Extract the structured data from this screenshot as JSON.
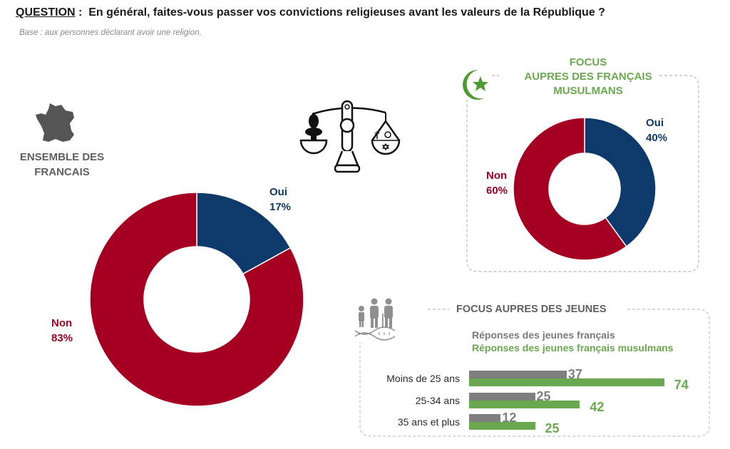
{
  "header": {
    "question_label": "QUESTION",
    "question_sep": " :  ",
    "question_text": "En général, faites-vous passer vos convictions religieuses avant les valeurs de la République ?",
    "base": "Base : aux personnes déclarant avoir une religion."
  },
  "icons": {
    "france_map": "france-map-icon",
    "scale": "balance-scale-icon",
    "crescent": "crescent-star-icon",
    "family": "family-dna-icon"
  },
  "colors": {
    "non": "#a50021",
    "oui": "#0e3a6b",
    "gray": "#7f7f7f",
    "green": "#6aa84f"
  },
  "chart_data": [
    {
      "type": "pie",
      "title": "ENSEMBLE DES FRANCAIS",
      "title_lines": [
        "ENSEMBLE DES",
        "FRANCAIS"
      ],
      "donut": true,
      "slices": [
        {
          "label": "Oui",
          "value": 17,
          "value_label": "17%",
          "color": "#0e3a6b"
        },
        {
          "label": "Non",
          "value": 83,
          "value_label": "83%",
          "color": "#a50021"
        }
      ]
    },
    {
      "type": "pie",
      "title": "FOCUS AUPRES DES FRANÇAIS MUSULMANS",
      "title_lines": [
        "FOCUS",
        "AUPRES DES FRANÇAIS",
        "MUSULMANS"
      ],
      "donut": true,
      "slices": [
        {
          "label": "Oui",
          "value": 40,
          "value_label": "40%",
          "color": "#0e3a6b"
        },
        {
          "label": "Non",
          "value": 60,
          "value_label": "60%",
          "color": "#a50021"
        }
      ]
    },
    {
      "type": "bar",
      "orientation": "horizontal",
      "title": "FOCUS AUPRES DES JEUNES",
      "categories": [
        "Moins de 25 ans",
        "25-34 ans",
        "35 ans et plus"
      ],
      "series": [
        {
          "name": "Réponses des jeunes français",
          "color": "#7f7f7f",
          "values": [
            37,
            25,
            12
          ]
        },
        {
          "name": "Réponses des jeunes français musulmans",
          "color": "#6aa84f",
          "values": [
            74,
            42,
            25
          ]
        }
      ],
      "xlim": [
        0,
        100
      ],
      "legend": "top"
    }
  ]
}
